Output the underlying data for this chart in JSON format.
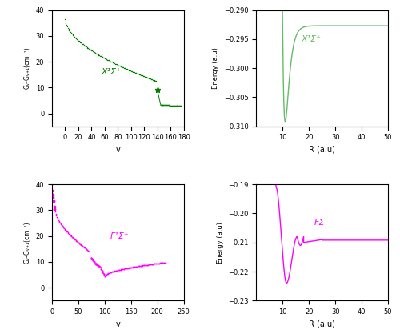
{
  "top_left": {
    "title": "X¹Σ⁺",
    "xlabel": "v",
    "ylabel": "Gᵥ-Gᵥ₊₁(cm⁻¹)",
    "color": "#008000",
    "xlim": [
      -20,
      180
    ],
    "ylim": [
      -5,
      40
    ],
    "xticks": [
      0,
      20,
      40,
      60,
      80,
      100,
      120,
      140,
      160,
      180
    ],
    "yticks": [
      -5,
      0,
      5,
      10,
      15,
      20,
      25,
      30,
      35,
      40
    ]
  },
  "top_right": {
    "title": "X¹Σ⁺",
    "xlabel": "R (a.u)",
    "ylabel": "Energy (a.u)",
    "color": "#66bb66",
    "xlim": [
      0,
      50
    ],
    "ylim": [
      -0.31,
      -0.29
    ],
    "xticks": [
      10,
      20,
      30,
      40,
      50
    ],
    "yticks": [
      -0.31,
      -0.305,
      -0.3,
      -0.295,
      -0.29
    ]
  },
  "bottom_left": {
    "title": "F¹Σ⁺",
    "xlabel": "v",
    "ylabel": "Gᵥ-Gᵥ₊₁(cm⁻¹)",
    "color": "#ff00ff",
    "xlim": [
      0,
      250
    ],
    "ylim": [
      -5,
      40
    ],
    "xticks": [
      0,
      50,
      100,
      150,
      200,
      250
    ],
    "yticks": [
      -5,
      0,
      5,
      10,
      15,
      20,
      25,
      30,
      35,
      40
    ]
  },
  "bottom_right": {
    "title": "FΣ",
    "xlabel": "R (a.u)",
    "ylabel": "Energy (a.u)",
    "color": "#ff00ff",
    "xlim": [
      0,
      50
    ],
    "ylim": [
      -0.23,
      -0.19
    ],
    "xticks": [
      10,
      20,
      30,
      40,
      50
    ],
    "yticks": [
      -0.23,
      -0.225,
      -0.22,
      -0.215,
      -0.21,
      -0.205,
      -0.2,
      -0.195,
      -0.19
    ]
  }
}
